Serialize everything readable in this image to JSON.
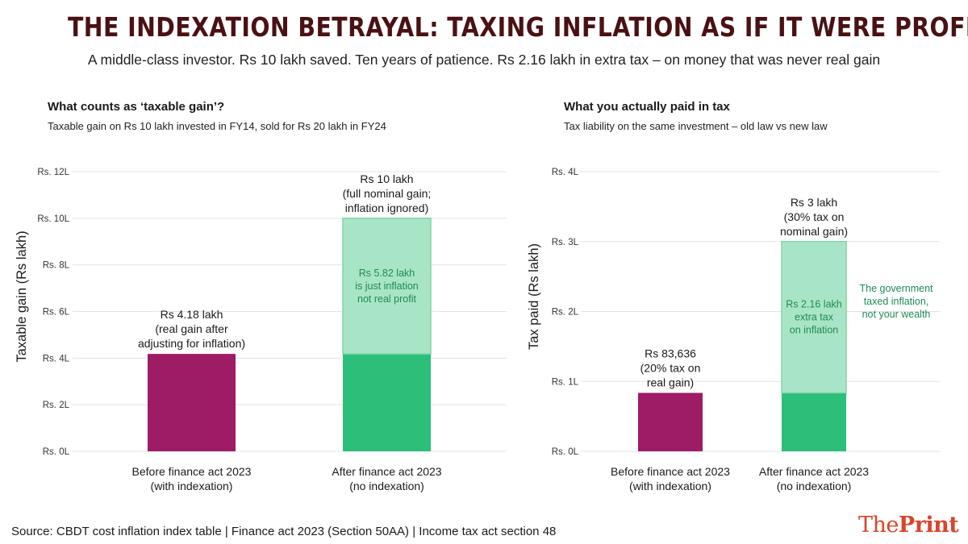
{
  "header": {
    "title": "THE INDEXATION BETRAYAL: TAXING INFLATION AS IF IT WERE PROFIT",
    "subtitle": "A middle-class investor. Rs 10 lakh saved. Ten years of patience. Rs 2.16 lakh in extra tax – on money that was never real gain"
  },
  "chart_data": [
    {
      "type": "bar",
      "stacked": true,
      "title": "What counts as ‘taxable gain’?",
      "subtitle": "Taxable gain on Rs 10 lakh invested in FY14, sold for Rs 20 lakh in FY24",
      "ylabel": "Taxable gain (Rs lakh)",
      "xlabel": "",
      "ylim": [
        0,
        12
      ],
      "grid": true,
      "ticks": [
        {
          "value": 0,
          "label": "Rs. 0L"
        },
        {
          "value": 2,
          "label": "Rs. 2L"
        },
        {
          "value": 4,
          "label": "Rs. 4L"
        },
        {
          "value": 6,
          "label": "Rs. 6L"
        },
        {
          "value": 8,
          "label": "Rs. 8L"
        },
        {
          "value": 10,
          "label": "Rs. 10L"
        },
        {
          "value": 12,
          "label": "Rs. 12L"
        }
      ],
      "categories": [
        [
          "Before finance act 2023",
          "(with indexation)"
        ],
        [
          "After finance act 2023",
          "(no indexation)"
        ]
      ],
      "series": [
        {
          "values": [
            4.18,
            4.18
          ],
          "colors": [
            "#9e1b66",
            "#2bbf79"
          ]
        },
        {
          "values": [
            0,
            5.82
          ],
          "colors": [
            "#a8e5c6",
            "#a8e5c6"
          ]
        }
      ],
      "top_labels": [
        [
          "Rs 4.18 lakh",
          "(real gain after",
          "adjusting for inflation)"
        ],
        [
          "Rs 10 lakh",
          "(full nominal gain;",
          "inflation ignored)"
        ]
      ],
      "inner_labels": [
        {
          "bar": 1,
          "lines": [
            "Rs 5.82 lakh",
            "is just inflation",
            "not real profit"
          ]
        }
      ],
      "side_note": []
    },
    {
      "type": "bar",
      "stacked": true,
      "title": "What you actually paid in tax",
      "subtitle": "Tax liability on the same investment – old law vs new law",
      "ylabel": "Tax paid (Rs lakh)",
      "xlabel": "",
      "ylim": [
        0,
        4
      ],
      "grid": true,
      "ticks": [
        {
          "value": 0,
          "label": "Rs. 0L"
        },
        {
          "value": 1,
          "label": "Rs. 1L"
        },
        {
          "value": 2,
          "label": "Rs. 2L"
        },
        {
          "value": 3,
          "label": "Rs. 3L"
        },
        {
          "value": 4,
          "label": "Rs. 4L"
        }
      ],
      "categories": [
        [
          "Before finance act 2023",
          "(with indexation)"
        ],
        [
          "After finance act 2023",
          "(no indexation)"
        ]
      ],
      "series": [
        {
          "values": [
            0.836,
            0.836
          ],
          "colors": [
            "#9e1b66",
            "#2bbf79"
          ]
        },
        {
          "values": [
            0,
            2.164
          ],
          "colors": [
            "#a8e5c6",
            "#a8e5c6"
          ]
        }
      ],
      "top_labels": [
        [
          "Rs 83,636",
          "(20% tax on",
          "real gain)"
        ],
        [
          "Rs 3 lakh",
          "(30% tax on",
          "nominal gain)"
        ]
      ],
      "inner_labels": [
        {
          "bar": 1,
          "lines": [
            "Rs 2.16 lakh",
            "extra tax",
            "on inflation"
          ]
        }
      ],
      "side_note": [
        "The government",
        "taxed inflation,",
        "not your wealth"
      ]
    }
  ],
  "footer": {
    "source": "Source: CBDT cost inflation index table | Finance act 2023 (Section 50AA) | Income tax act section 48",
    "logo_the": "The",
    "logo_print": "Print"
  },
  "colors": {
    "title": "#4a1114",
    "before_bar": "#9e1b66",
    "after_base": "#2bbf79",
    "after_light": "#a8e5c6",
    "annotation_green": "#1f8a57",
    "grid": "#e3e3e3",
    "logo": "#d9442b"
  }
}
